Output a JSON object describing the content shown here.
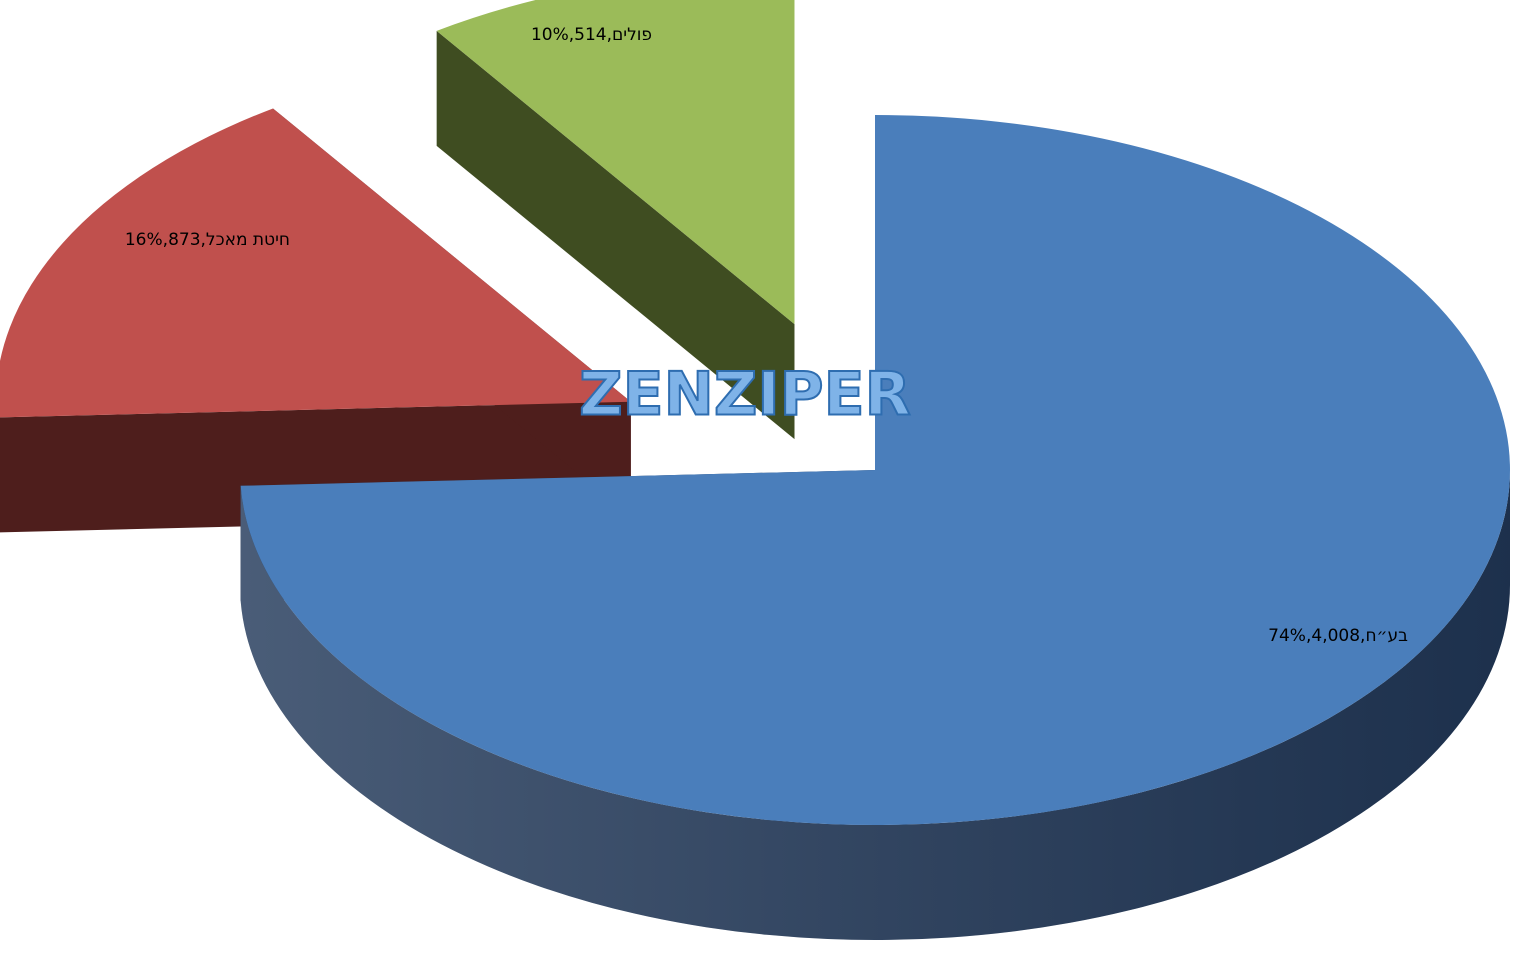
{
  "chart_data": {
    "type": "pie3d",
    "categories": [
      "בע״ח",
      "חיטת מאכל",
      "פולים"
    ],
    "values": [
      4008,
      873,
      514
    ],
    "value_labels": [
      "4,008",
      "873",
      "514"
    ],
    "percents": [
      74,
      16,
      10
    ],
    "percent_labels": [
      "74%",
      "16%",
      "10%"
    ],
    "separator": ", ",
    "colors": [
      "#4a7ebb",
      "#c0504d",
      "#9bbb59"
    ],
    "side_colors": [
      "#22395a",
      "#4e1e1c",
      "#3f4d21"
    ],
    "exploded": [
      false,
      true,
      true
    ],
    "watermark": "ZENZIPER"
  }
}
